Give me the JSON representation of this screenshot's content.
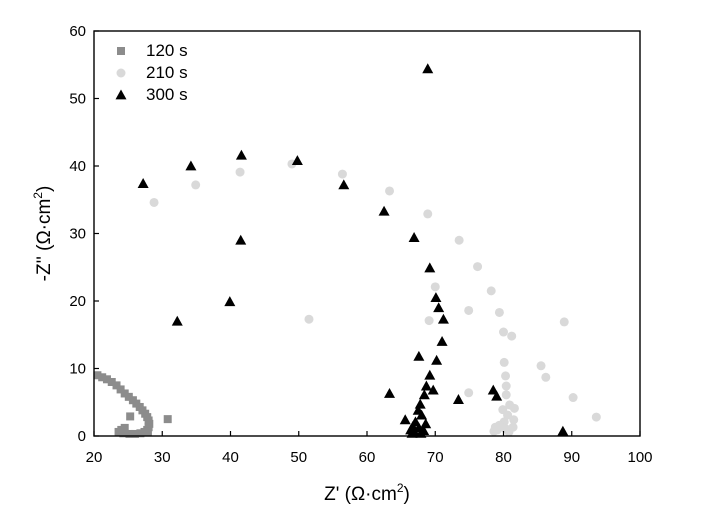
{
  "chart_data": {
    "type": "scatter",
    "title": "",
    "xlabel": {
      "main": "Z' (Ω·cm",
      "sup": "2",
      "close": ")"
    },
    "ylabel": {
      "main": "-Z'' (Ω·cm",
      "sup": "2",
      "close": ")"
    },
    "xlim": [
      20,
      100
    ],
    "ylim": [
      0,
      60
    ],
    "xticks": [
      20,
      30,
      40,
      50,
      60,
      70,
      80,
      90,
      100
    ],
    "yticks": [
      0,
      10,
      20,
      30,
      40,
      50,
      60
    ],
    "grid": false,
    "legend_position": "top-left",
    "series": [
      {
        "name": "120 s",
        "marker": "square",
        "color": "#8c8c8c",
        "points": [
          [
            20.5,
            9.0
          ],
          [
            21.2,
            8.7
          ],
          [
            21.9,
            8.4
          ],
          [
            22.6,
            8.0
          ],
          [
            23.3,
            7.5
          ],
          [
            23.9,
            6.9
          ],
          [
            24.5,
            6.3
          ],
          [
            25.1,
            5.8
          ],
          [
            25.7,
            5.3
          ],
          [
            26.2,
            4.8
          ],
          [
            26.7,
            4.3
          ],
          [
            27.1,
            3.8
          ],
          [
            27.5,
            3.3
          ],
          [
            27.8,
            2.8
          ],
          [
            28.0,
            2.3
          ],
          [
            28.1,
            1.8
          ],
          [
            28.0,
            1.3
          ],
          [
            27.8,
            0.9
          ],
          [
            27.4,
            0.6
          ],
          [
            26.8,
            0.4
          ],
          [
            26.0,
            0.3
          ],
          [
            25.2,
            0.3
          ],
          [
            24.3,
            0.4
          ],
          [
            23.6,
            0.6
          ],
          [
            24.0,
            0.9
          ],
          [
            24.5,
            1.2
          ],
          [
            25.3,
            2.9
          ],
          [
            27.9,
            0.6
          ],
          [
            30.8,
            2.5
          ]
        ]
      },
      {
        "name": "210 s",
        "marker": "circle",
        "color": "#d9d9d9",
        "points": [
          [
            28.8,
            34.6
          ],
          [
            34.9,
            37.2
          ],
          [
            41.4,
            39.1
          ],
          [
            49.0,
            40.3
          ],
          [
            56.4,
            38.8
          ],
          [
            63.3,
            36.3
          ],
          [
            68.9,
            32.9
          ],
          [
            73.5,
            29.0
          ],
          [
            76.2,
            25.1
          ],
          [
            78.2,
            21.5
          ],
          [
            70.0,
            22.1
          ],
          [
            69.1,
            17.1
          ],
          [
            51.5,
            17.3
          ],
          [
            79.4,
            18.3
          ],
          [
            74.9,
            18.6
          ],
          [
            80.0,
            15.4
          ],
          [
            81.2,
            14.8
          ],
          [
            80.1,
            10.9
          ],
          [
            85.5,
            10.4
          ],
          [
            80.3,
            8.9
          ],
          [
            86.2,
            8.7
          ],
          [
            80.4,
            7.4
          ],
          [
            88.9,
            16.9
          ],
          [
            74.9,
            6.4
          ],
          [
            90.2,
            5.7
          ],
          [
            80.4,
            6.1
          ],
          [
            80.9,
            4.6
          ],
          [
            79.9,
            3.9
          ],
          [
            81.6,
            4.1
          ],
          [
            80.6,
            3.1
          ],
          [
            93.6,
            2.8
          ],
          [
            81.5,
            2.4
          ],
          [
            80.1,
            2.1
          ],
          [
            79.4,
            1.6
          ],
          [
            78.8,
            1.3
          ],
          [
            81.4,
            1.3
          ],
          [
            80.3,
            1.1
          ],
          [
            79.1,
            0.9
          ],
          [
            78.6,
            0.7
          ],
          [
            80.8,
            0.6
          ]
        ]
      },
      {
        "name": "300 s",
        "marker": "triangle",
        "color": "#000000",
        "points": [
          [
            68.9,
            54.4
          ],
          [
            27.2,
            37.4
          ],
          [
            34.2,
            40.0
          ],
          [
            41.6,
            41.6
          ],
          [
            49.8,
            40.8
          ],
          [
            56.6,
            37.2
          ],
          [
            62.5,
            33.3
          ],
          [
            66.9,
            29.4
          ],
          [
            41.5,
            29.0
          ],
          [
            69.2,
            24.9
          ],
          [
            39.9,
            19.9
          ],
          [
            70.1,
            20.5
          ],
          [
            70.5,
            19.0
          ],
          [
            71.2,
            17.3
          ],
          [
            32.2,
            17.0
          ],
          [
            71.0,
            14.0
          ],
          [
            70.2,
            11.2
          ],
          [
            67.6,
            11.8
          ],
          [
            69.2,
            9.0
          ],
          [
            68.7,
            7.4
          ],
          [
            69.7,
            6.8
          ],
          [
            68.4,
            6.1
          ],
          [
            63.3,
            6.3
          ],
          [
            73.4,
            5.4
          ],
          [
            78.5,
            6.8
          ],
          [
            79.0,
            5.9
          ],
          [
            67.8,
            4.7
          ],
          [
            67.5,
            3.8
          ],
          [
            68.0,
            3.1
          ],
          [
            65.6,
            2.4
          ],
          [
            67.1,
            2.1
          ],
          [
            68.6,
            1.8
          ],
          [
            66.7,
            1.4
          ],
          [
            67.6,
            1.2
          ],
          [
            66.4,
            0.9
          ],
          [
            68.3,
            0.8
          ],
          [
            88.7,
            0.7
          ],
          [
            67.0,
            0.5
          ],
          [
            66.6,
            0.4
          ],
          [
            67.9,
            0.4
          ]
        ]
      }
    ]
  }
}
